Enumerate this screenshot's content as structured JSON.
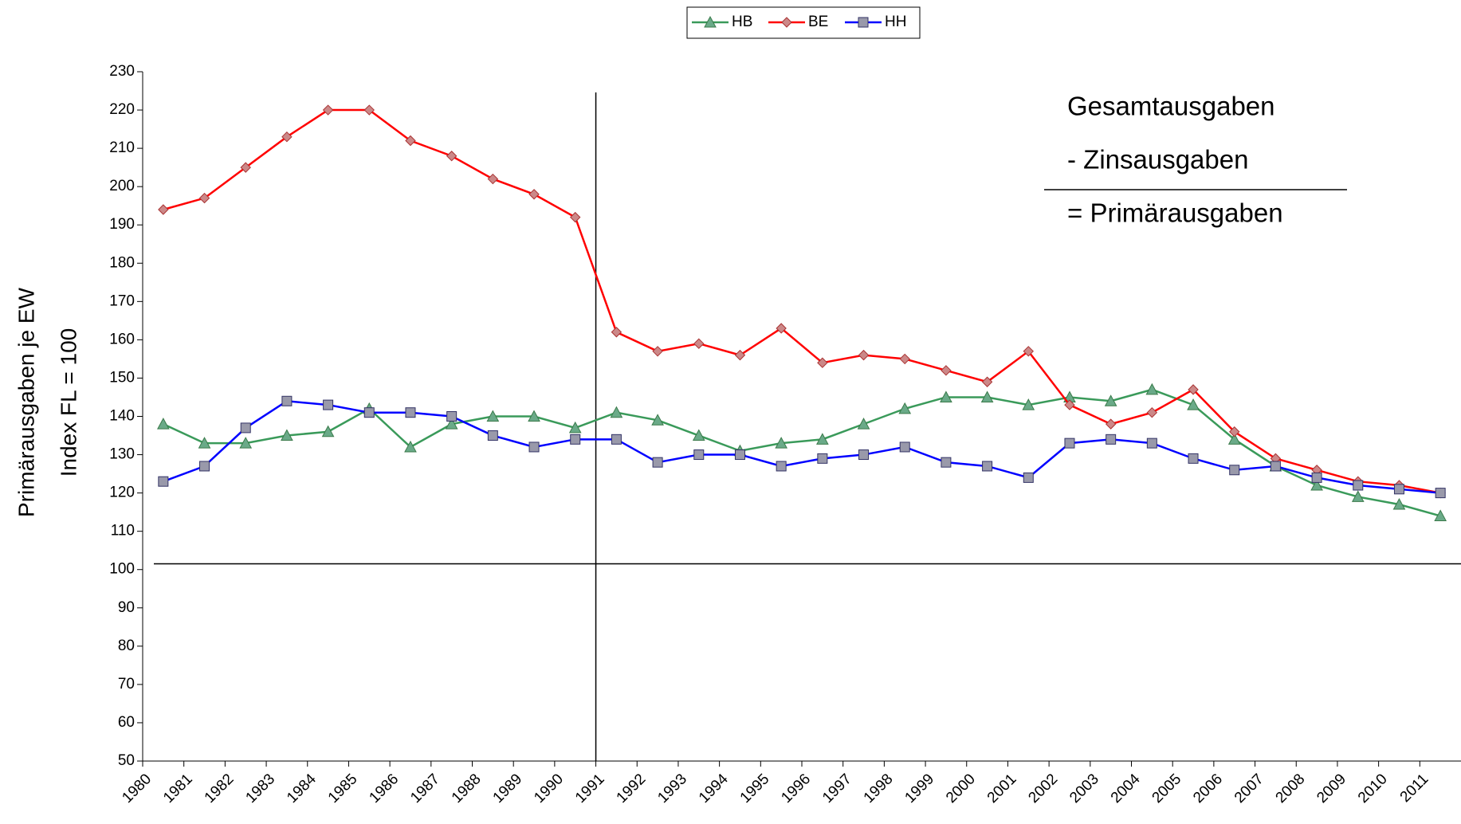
{
  "chart_data": {
    "type": "line",
    "y_label_lines": [
      "Primärausgaben je EW",
      "Index FL = 100"
    ],
    "annotations": [
      "Gesamtausgaben",
      "- Zinsausgaben",
      "= Primärausgaben"
    ],
    "categories": [
      "1980",
      "1981",
      "1982",
      "1983",
      "1984",
      "1985",
      "1986",
      "1987",
      "1988",
      "1989",
      "1990",
      "1991",
      "1992",
      "1993",
      "1994",
      "1995",
      "1996",
      "1997",
      "1998",
      "1999",
      "2000",
      "2001",
      "2002",
      "2003",
      "2004",
      "2005",
      "2006",
      "2007",
      "2008",
      "2009",
      "2010",
      "2011"
    ],
    "series": [
      {
        "name": "HB",
        "color": "#3a9a5a",
        "marker": "triangle",
        "marker_color": "#6aaa88",
        "values": [
          138,
          133,
          133,
          135,
          136,
          142,
          132,
          138,
          140,
          140,
          137,
          141,
          139,
          135,
          131,
          133,
          134,
          138,
          142,
          145,
          145,
          143,
          145,
          144,
          147,
          143,
          134,
          127,
          122,
          119,
          117,
          114
        ]
      },
      {
        "name": "BE",
        "color": "#ff0000",
        "marker": "diamond",
        "marker_color": "#cc8888",
        "values": [
          194,
          197,
          205,
          213,
          220,
          220,
          212,
          208,
          202,
          198,
          192,
          162,
          157,
          159,
          156,
          163,
          154,
          156,
          155,
          152,
          149,
          157,
          143,
          138,
          141,
          147,
          136,
          129,
          126,
          123,
          122,
          120
        ]
      },
      {
        "name": "HH",
        "color": "#0000ff",
        "marker": "square",
        "marker_color": "#9999aa",
        "values": [
          123,
          127,
          137,
          144,
          143,
          141,
          141,
          140,
          135,
          132,
          134,
          134,
          128,
          130,
          130,
          127,
          129,
          130,
          132,
          128,
          127,
          124,
          133,
          134,
          133,
          129,
          126,
          127,
          124,
          122,
          121,
          120
        ]
      }
    ],
    "ylim": [
      50,
      230
    ],
    "yticks": [
      50,
      60,
      70,
      80,
      90,
      100,
      110,
      120,
      130,
      140,
      150,
      160,
      170,
      180,
      190,
      200,
      210,
      220,
      230
    ],
    "reference_y": 101.5,
    "reference_category": "1991",
    "legend": "top"
  }
}
